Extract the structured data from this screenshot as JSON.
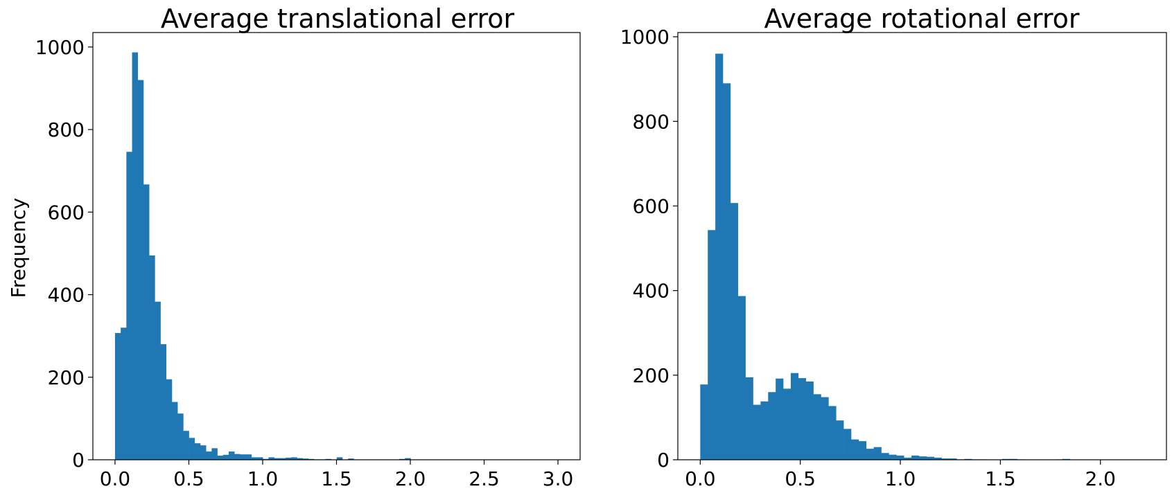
{
  "chart_data": [
    {
      "type": "bar",
      "title": "Average translational error",
      "xlabel": "",
      "ylabel": "Frequency",
      "xlim": [
        -0.15,
        3.15
      ],
      "ylim": [
        0,
        1035
      ],
      "xticks": [
        0.0,
        0.5,
        1.0,
        1.5,
        2.0,
        2.5,
        3.0
      ],
      "xtick_labels": [
        "0.0",
        "0.5",
        "1.0",
        "1.5",
        "2.0",
        "2.5",
        "3.0"
      ],
      "yticks": [
        0,
        200,
        400,
        600,
        800,
        1000
      ],
      "ytick_labels": [
        "0",
        "200",
        "400",
        "600",
        "800",
        "1000"
      ],
      "bin_width": 0.0385,
      "bin_start": 0.0,
      "color": "#1f77b4",
      "values": [
        307,
        320,
        746,
        987,
        920,
        667,
        495,
        383,
        280,
        195,
        140,
        112,
        70,
        53,
        40,
        35,
        20,
        28,
        10,
        12,
        20,
        14,
        13,
        13,
        6,
        6,
        2,
        6,
        4,
        4,
        5,
        6,
        4,
        3,
        2,
        1,
        1,
        2,
        0,
        6,
        0,
        3,
        0,
        0,
        0,
        0,
        0,
        0,
        0,
        0,
        2,
        4,
        0,
        0,
        0,
        0,
        0,
        0,
        0,
        0,
        0,
        0,
        0,
        0,
        0,
        0,
        0,
        0,
        0,
        0,
        0,
        0,
        0,
        0,
        0,
        0,
        0,
        0,
        0
      ]
    },
    {
      "type": "bar",
      "title": "Average rotational error",
      "xlabel": "",
      "ylabel": "",
      "xlim": [
        -0.112,
        2.33
      ],
      "ylim": [
        0,
        1010
      ],
      "xticks": [
        0.0,
        0.5,
        1.0,
        1.5,
        2.0
      ],
      "xtick_labels": [
        "0.0",
        "0.5",
        "1.0",
        "1.5",
        "2.0"
      ],
      "yticks": [
        0,
        200,
        400,
        600,
        800,
        1000
      ],
      "ytick_labels": [
        "0",
        "200",
        "400",
        "600",
        "800",
        "1000"
      ],
      "bin_width": 0.0377,
      "bin_start": 0.0,
      "color": "#1f77b4",
      "values": [
        178,
        543,
        960,
        890,
        607,
        387,
        195,
        130,
        138,
        160,
        192,
        168,
        205,
        193,
        185,
        155,
        148,
        127,
        93,
        73,
        48,
        44,
        26,
        30,
        16,
        12,
        10,
        5,
        10,
        8,
        7,
        5,
        3,
        3,
        1,
        2,
        1,
        1,
        0,
        0,
        2,
        2,
        1,
        0,
        0,
        0,
        0,
        1,
        2,
        0,
        0,
        0,
        0,
        0,
        0,
        0,
        0,
        0,
        0
      ]
    }
  ]
}
